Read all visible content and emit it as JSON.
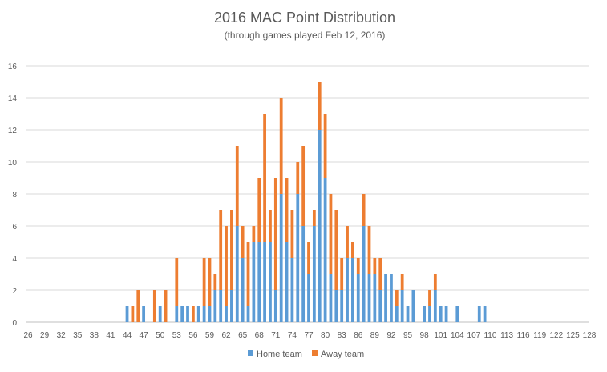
{
  "chart_data": {
    "type": "bar",
    "stacked": true,
    "title": "2016 MAC Point Distribution",
    "subtitle": "(through games played Feb 12, 2016)",
    "xlabel": "",
    "ylabel": "",
    "x_min": 26,
    "x_max": 128,
    "x_tick_labels": [
      "26",
      "29",
      "32",
      "35",
      "38",
      "41",
      "44",
      "47",
      "50",
      "53",
      "56",
      "59",
      "62",
      "65",
      "68",
      "71",
      "74",
      "77",
      "80",
      "83",
      "86",
      "89",
      "92",
      "95",
      "98",
      "101",
      "104",
      "107",
      "110",
      "113",
      "116",
      "119",
      "122",
      "125",
      "128"
    ],
    "y_ticks": [
      0,
      2,
      4,
      6,
      8,
      10,
      12,
      14,
      16
    ],
    "ylim": [
      0,
      16
    ],
    "grid": true,
    "legend_position": "bottom",
    "series": [
      {
        "name": "Home team",
        "color": "#5B9BD5",
        "points": [
          [
            44,
            1
          ],
          [
            47,
            1
          ],
          [
            50,
            1
          ],
          [
            53,
            1
          ],
          [
            54,
            1
          ],
          [
            55,
            1
          ],
          [
            57,
            1
          ],
          [
            58,
            1
          ],
          [
            59,
            1
          ],
          [
            60,
            2
          ],
          [
            61,
            2
          ],
          [
            62,
            1
          ],
          [
            63,
            2
          ],
          [
            64,
            6
          ],
          [
            65,
            4
          ],
          [
            66,
            1
          ],
          [
            67,
            5
          ],
          [
            68,
            5
          ],
          [
            69,
            5
          ],
          [
            70,
            5
          ],
          [
            71,
            2
          ],
          [
            72,
            8
          ],
          [
            73,
            5
          ],
          [
            74,
            4
          ],
          [
            75,
            8
          ],
          [
            76,
            6
          ],
          [
            77,
            3
          ],
          [
            78,
            6
          ],
          [
            79,
            12
          ],
          [
            80,
            9
          ],
          [
            81,
            3
          ],
          [
            82,
            2
          ],
          [
            83,
            2
          ],
          [
            84,
            4
          ],
          [
            85,
            4
          ],
          [
            86,
            3
          ],
          [
            87,
            6
          ],
          [
            88,
            3
          ],
          [
            89,
            3
          ],
          [
            90,
            2
          ],
          [
            91,
            3
          ],
          [
            92,
            3
          ],
          [
            93,
            1
          ],
          [
            94,
            2
          ],
          [
            95,
            1
          ],
          [
            96,
            2
          ],
          [
            98,
            1
          ],
          [
            99,
            1
          ],
          [
            100,
            2
          ],
          [
            101,
            1
          ],
          [
            102,
            1
          ],
          [
            104,
            1
          ],
          [
            108,
            1
          ],
          [
            109,
            1
          ]
        ]
      },
      {
        "name": "Away team",
        "color": "#ED7D31",
        "points": [
          [
            45,
            1
          ],
          [
            46,
            2
          ],
          [
            47,
            0
          ],
          [
            49,
            2
          ],
          [
            50,
            0
          ],
          [
            51,
            2
          ],
          [
            53,
            3
          ],
          [
            54,
            0
          ],
          [
            55,
            0
          ],
          [
            56,
            1
          ],
          [
            57,
            0
          ],
          [
            58,
            3
          ],
          [
            59,
            3
          ],
          [
            60,
            1
          ],
          [
            61,
            5
          ],
          [
            62,
            5
          ],
          [
            63,
            5
          ],
          [
            64,
            5
          ],
          [
            65,
            2
          ],
          [
            66,
            4
          ],
          [
            67,
            1
          ],
          [
            68,
            4
          ],
          [
            69,
            8
          ],
          [
            70,
            2
          ],
          [
            71,
            7
          ],
          [
            72,
            6
          ],
          [
            73,
            4
          ],
          [
            74,
            3
          ],
          [
            75,
            2
          ],
          [
            76,
            5
          ],
          [
            77,
            2
          ],
          [
            78,
            1
          ],
          [
            79,
            3
          ],
          [
            80,
            4
          ],
          [
            81,
            5
          ],
          [
            82,
            5
          ],
          [
            83,
            2
          ],
          [
            84,
            2
          ],
          [
            85,
            1
          ],
          [
            86,
            1
          ],
          [
            87,
            2
          ],
          [
            88,
            3
          ],
          [
            89,
            1
          ],
          [
            90,
            2
          ],
          [
            92,
            0
          ],
          [
            93,
            1
          ],
          [
            94,
            1
          ],
          [
            95,
            0
          ],
          [
            99,
            1
          ],
          [
            100,
            1
          ]
        ]
      }
    ]
  }
}
